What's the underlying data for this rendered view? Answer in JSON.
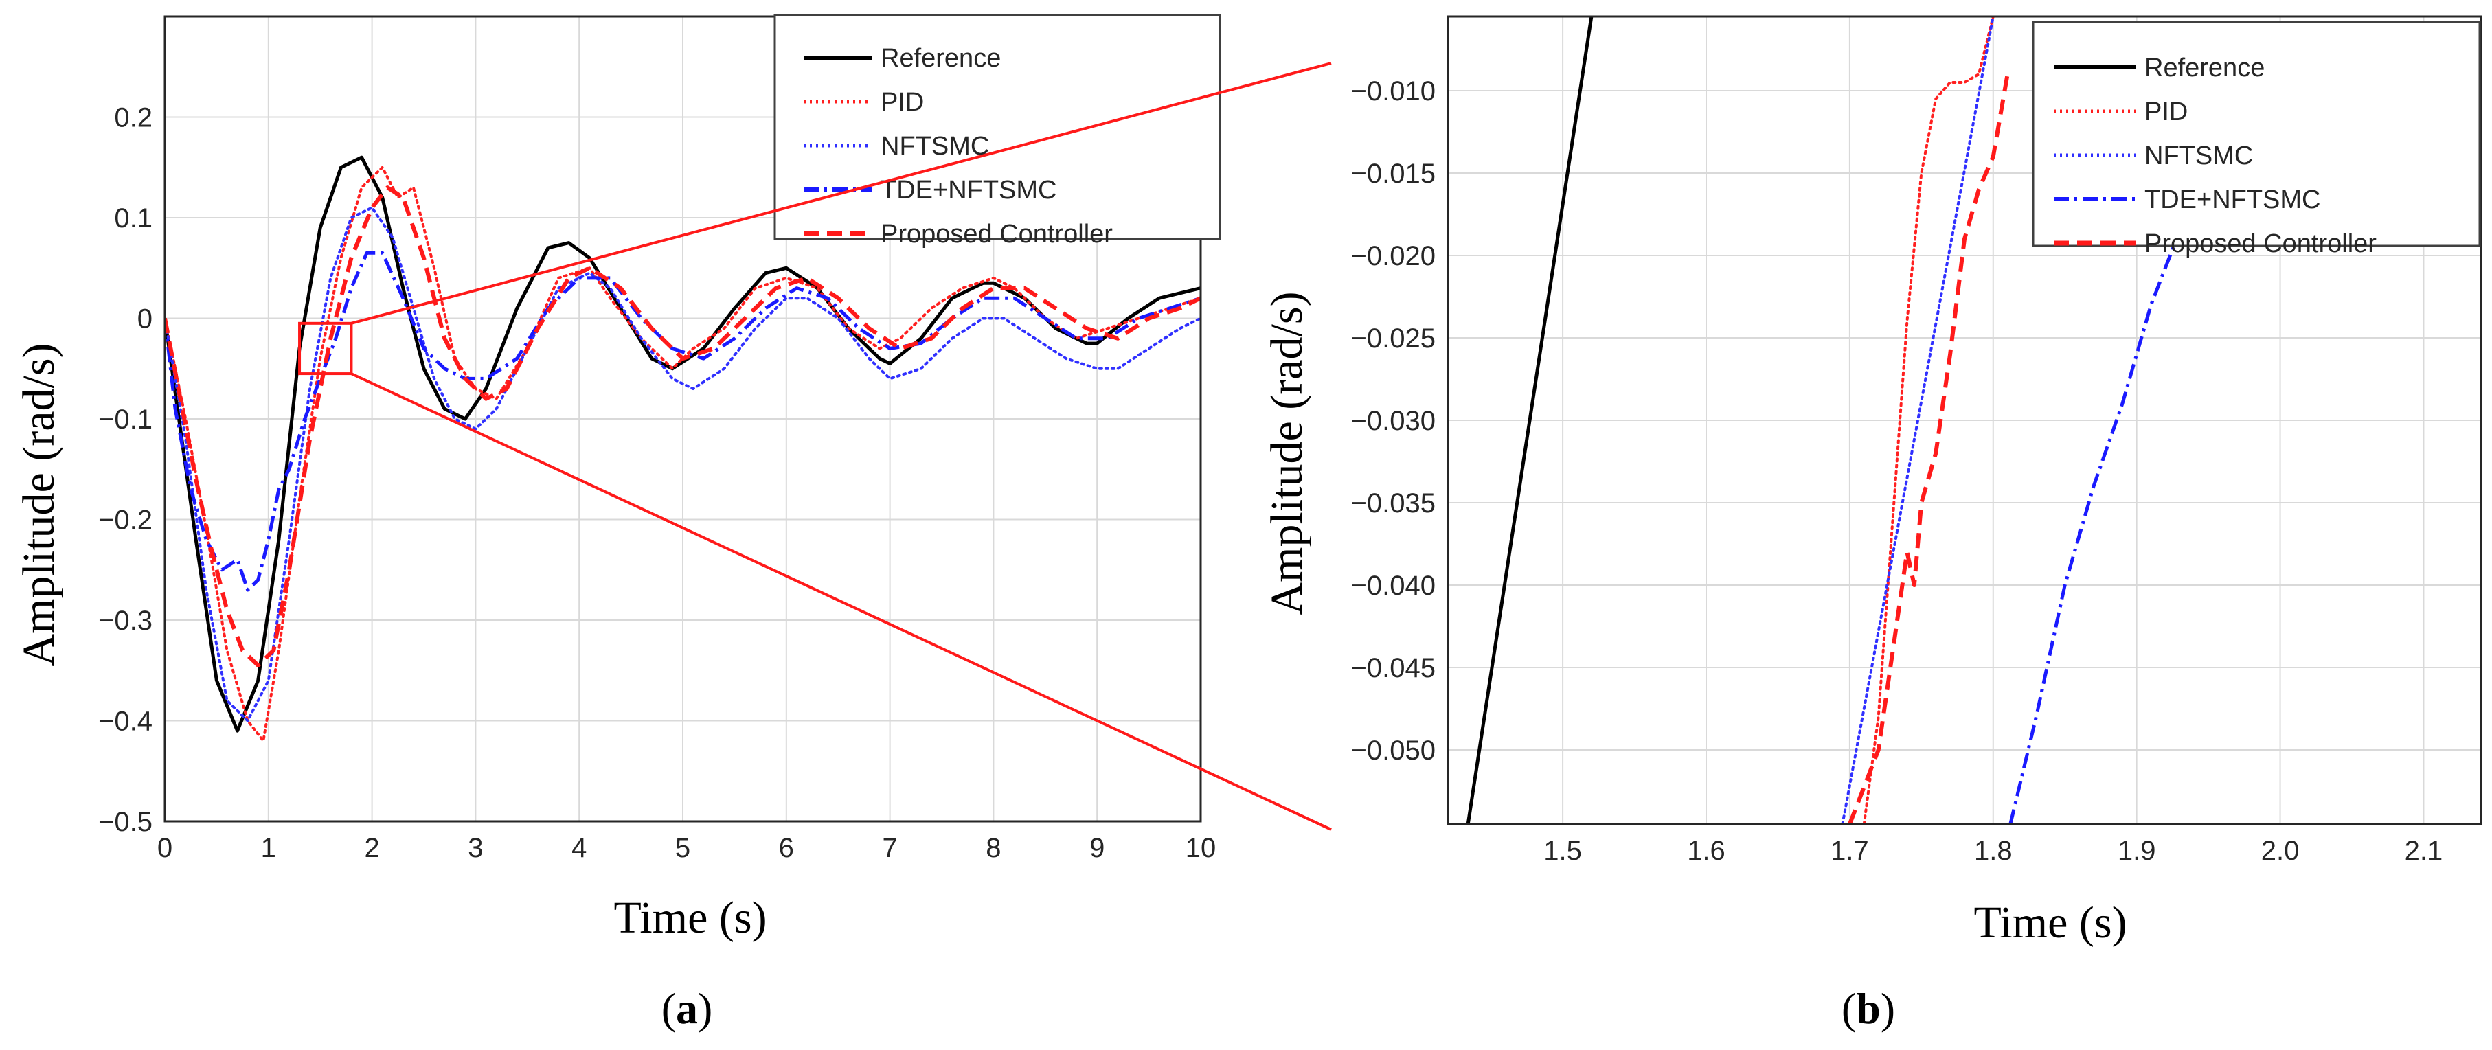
{
  "chart_data": [
    {
      "panel_label": "a",
      "type": "line",
      "xlabel": "Time (s)",
      "ylabel": "Amplitude (rad/s)",
      "xlim": [
        0,
        10
      ],
      "ylim": [
        -0.5,
        0.3
      ],
      "xticks": [
        0,
        1,
        2,
        3,
        4,
        5,
        6,
        7,
        8,
        9,
        10
      ],
      "xtick_labels": [
        "0",
        "1",
        "2",
        "3",
        "4",
        "5",
        "6",
        "7",
        "8",
        "9",
        "10"
      ],
      "yticks": [
        -0.5,
        -0.4,
        -0.3,
        -0.2,
        -0.1,
        0,
        0.1,
        0.2
      ],
      "ytick_labels": [
        "−0.5",
        "−0.4",
        "−0.3",
        "−0.2",
        "−0.1",
        "0",
        "0.1",
        "0.2"
      ],
      "grid": true,
      "legend_position": "top-right",
      "zoom_box": {
        "x": [
          1.3,
          1.8
        ],
        "y": [
          -0.055,
          -0.005
        ]
      },
      "series": [
        {
          "name": "Reference",
          "color": "#000000",
          "style": "solid",
          "x": [
            0,
            0.3,
            0.5,
            0.7,
            0.9,
            1.1,
            1.3,
            1.5,
            1.7,
            1.9,
            2.1,
            2.3,
            2.5,
            2.7,
            2.9,
            3.1,
            3.4,
            3.7,
            3.9,
            4.1,
            4.4,
            4.7,
            4.9,
            5.2,
            5.5,
            5.8,
            6.0,
            6.3,
            6.6,
            6.9,
            7.0,
            7.3,
            7.6,
            7.9,
            8.0,
            8.3,
            8.6,
            8.9,
            9.0,
            9.3,
            9.6,
            10.0
          ],
          "y": [
            0,
            -0.22,
            -0.36,
            -0.41,
            -0.36,
            -0.22,
            -0.03,
            0.09,
            0.15,
            0.16,
            0.12,
            0.03,
            -0.05,
            -0.09,
            -0.1,
            -0.07,
            0.01,
            0.07,
            0.075,
            0.06,
            0.01,
            -0.04,
            -0.05,
            -0.03,
            0.01,
            0.045,
            0.05,
            0.03,
            -0.01,
            -0.04,
            -0.045,
            -0.02,
            0.02,
            0.035,
            0.035,
            0.02,
            -0.01,
            -0.025,
            -0.025,
            0.0,
            0.02,
            0.03
          ]
        },
        {
          "name": "PID",
          "color": "#ff2020",
          "style": "dotted",
          "x": [
            0,
            0.2,
            0.4,
            0.6,
            0.8,
            0.95,
            1.1,
            1.3,
            1.5,
            1.7,
            1.9,
            2.1,
            2.25,
            2.4,
            2.6,
            2.8,
            3.0,
            3.2,
            3.5,
            3.8,
            4.1,
            4.3,
            4.6,
            4.9,
            5.1,
            5.4,
            5.7,
            6.0,
            6.3,
            6.6,
            6.9,
            7.1,
            7.4,
            7.7,
            8.0,
            8.2,
            8.5,
            8.8,
            9.1,
            9.4,
            9.7,
            10.0
          ],
          "y": [
            0,
            -0.1,
            -0.21,
            -0.33,
            -0.4,
            -0.42,
            -0.33,
            -0.18,
            -0.04,
            0.06,
            0.13,
            0.15,
            0.12,
            0.13,
            0.05,
            -0.04,
            -0.07,
            -0.08,
            -0.03,
            0.04,
            0.05,
            0.02,
            -0.02,
            -0.05,
            -0.03,
            -0.01,
            0.03,
            0.04,
            0.03,
            -0.01,
            -0.03,
            -0.02,
            0.01,
            0.03,
            0.04,
            0.03,
            0.0,
            -0.02,
            -0.01,
            0.0,
            0.01,
            0.02
          ]
        },
        {
          "name": "NFTSMC",
          "color": "#3030ff",
          "style": "dotted",
          "x": [
            0,
            0.2,
            0.4,
            0.6,
            0.8,
            1.0,
            1.2,
            1.4,
            1.6,
            1.8,
            2.0,
            2.2,
            2.4,
            2.6,
            2.8,
            3.0,
            3.2,
            3.5,
            3.8,
            4.1,
            4.3,
            4.6,
            4.9,
            5.1,
            5.4,
            5.7,
            6.0,
            6.2,
            6.5,
            6.8,
            7.0,
            7.3,
            7.6,
            7.9,
            8.1,
            8.4,
            8.7,
            9.0,
            9.2,
            9.5,
            9.8,
            10.0
          ],
          "y": [
            0,
            -0.12,
            -0.27,
            -0.38,
            -0.4,
            -0.36,
            -0.22,
            -0.07,
            0.04,
            0.1,
            0.11,
            0.08,
            0.01,
            -0.06,
            -0.1,
            -0.11,
            -0.09,
            -0.03,
            0.03,
            0.045,
            0.03,
            -0.02,
            -0.06,
            -0.07,
            -0.05,
            -0.01,
            0.02,
            0.02,
            0.0,
            -0.04,
            -0.06,
            -0.05,
            -0.02,
            0.0,
            0.0,
            -0.02,
            -0.04,
            -0.05,
            -0.05,
            -0.03,
            -0.01,
            0.0
          ]
        },
        {
          "name": "TDE+NFTSMC",
          "color": "#1a1aff",
          "style": "dashdot",
          "x": [
            0,
            0.1,
            0.25,
            0.4,
            0.55,
            0.7,
            0.8,
            0.9,
            1.0,
            1.1,
            1.2,
            1.35,
            1.5,
            1.65,
            1.8,
            1.95,
            2.1,
            2.3,
            2.5,
            2.7,
            2.9,
            3.1,
            3.4,
            3.7,
            4.0,
            4.3,
            4.6,
            4.9,
            5.2,
            5.5,
            5.8,
            6.1,
            6.4,
            6.7,
            7.0,
            7.3,
            7.6,
            7.9,
            8.2,
            8.5,
            8.8,
            9.1,
            9.4,
            9.7,
            10.0
          ],
          "y": [
            0,
            -0.09,
            -0.17,
            -0.22,
            -0.25,
            -0.24,
            -0.27,
            -0.26,
            -0.22,
            -0.17,
            -0.15,
            -0.1,
            -0.06,
            -0.02,
            0.03,
            0.065,
            0.065,
            0.02,
            -0.03,
            -0.05,
            -0.06,
            -0.06,
            -0.04,
            0.01,
            0.04,
            0.04,
            0.0,
            -0.03,
            -0.04,
            -0.02,
            0.01,
            0.03,
            0.02,
            -0.01,
            -0.03,
            -0.025,
            0.0,
            0.02,
            0.02,
            0.0,
            -0.02,
            -0.02,
            0.0,
            0.01,
            0.02
          ]
        },
        {
          "name": "Proposed Controller",
          "color": "#ff1a1a",
          "style": "dashed",
          "x": [
            0,
            0.15,
            0.3,
            0.45,
            0.6,
            0.75,
            0.9,
            1.05,
            1.2,
            1.4,
            1.6,
            1.8,
            2.0,
            2.15,
            2.3,
            2.5,
            2.7,
            2.9,
            3.1,
            3.3,
            3.6,
            3.9,
            4.1,
            4.4,
            4.7,
            5.0,
            5.3,
            5.6,
            5.9,
            6.2,
            6.5,
            6.8,
            7.1,
            7.4,
            7.7,
            8.0,
            8.3,
            8.6,
            8.9,
            9.2,
            9.5,
            9.8,
            10.0
          ],
          "y": [
            0,
            -0.08,
            -0.16,
            -0.23,
            -0.29,
            -0.33,
            -0.345,
            -0.33,
            -0.25,
            -0.12,
            -0.02,
            0.06,
            0.11,
            0.13,
            0.12,
            0.06,
            -0.02,
            -0.06,
            -0.08,
            -0.07,
            -0.01,
            0.04,
            0.05,
            0.03,
            -0.01,
            -0.04,
            -0.03,
            0.0,
            0.03,
            0.04,
            0.02,
            -0.01,
            -0.03,
            -0.02,
            0.01,
            0.03,
            0.03,
            0.01,
            -0.01,
            -0.02,
            0.0,
            0.01,
            0.02
          ]
        }
      ]
    },
    {
      "panel_label": "b",
      "type": "line",
      "xlabel": "Time (s)",
      "ylabel": "Amplitude (rad/s)",
      "xlim": [
        1.42,
        2.14
      ],
      "ylim": [
        -0.0545,
        -0.0055
      ],
      "xticks": [
        1.5,
        1.6,
        1.7,
        1.8,
        1.9,
        2.0,
        2.1
      ],
      "xtick_labels": [
        "1.5",
        "1.6",
        "1.7",
        "1.8",
        "1.9",
        "2.0",
        "2.1"
      ],
      "yticks": [
        -0.01,
        -0.015,
        -0.02,
        -0.025,
        -0.03,
        -0.035,
        -0.04,
        -0.045,
        -0.05
      ],
      "ytick_labels": [
        "−0.010",
        "−0.015",
        "−0.020",
        "−0.025",
        "−0.030",
        "−0.035",
        "−0.040",
        "−0.045",
        "−0.050"
      ],
      "grid": true,
      "legend_position": "top-right",
      "series": [
        {
          "name": "Reference",
          "color": "#000000",
          "style": "solid",
          "x": [
            1.434,
            1.52
          ],
          "y": [
            -0.0545,
            -0.0055
          ]
        },
        {
          "name": "PID",
          "color": "#ff2020",
          "style": "dotted",
          "x": [
            1.71,
            1.72,
            1.73,
            1.74,
            1.75,
            1.76,
            1.77,
            1.78,
            1.79,
            1.8
          ],
          "y": [
            -0.0545,
            -0.048,
            -0.036,
            -0.024,
            -0.015,
            -0.0105,
            -0.0095,
            -0.0095,
            -0.009,
            -0.0055
          ]
        },
        {
          "name": "NFTSMC",
          "color": "#3030ff",
          "style": "dotted",
          "x": [
            1.695,
            1.8
          ],
          "y": [
            -0.0545,
            -0.0055
          ]
        },
        {
          "name": "TDE+NFTSMC",
          "color": "#1a1aff",
          "style": "dashdot",
          "x": [
            1.812,
            1.83,
            1.85,
            1.87,
            1.89,
            1.91,
            1.93
          ],
          "y": [
            -0.0545,
            -0.048,
            -0.04,
            -0.034,
            -0.029,
            -0.023,
            -0.0185
          ]
        },
        {
          "name": "Proposed Controller",
          "color": "#ff1a1a",
          "style": "dashed",
          "x": [
            1.7,
            1.72,
            1.73,
            1.74,
            1.745,
            1.75,
            1.76,
            1.77,
            1.78,
            1.79,
            1.8,
            1.81
          ],
          "y": [
            -0.0545,
            -0.05,
            -0.044,
            -0.038,
            -0.04,
            -0.035,
            -0.032,
            -0.026,
            -0.019,
            -0.016,
            -0.014,
            -0.009
          ]
        }
      ]
    }
  ]
}
